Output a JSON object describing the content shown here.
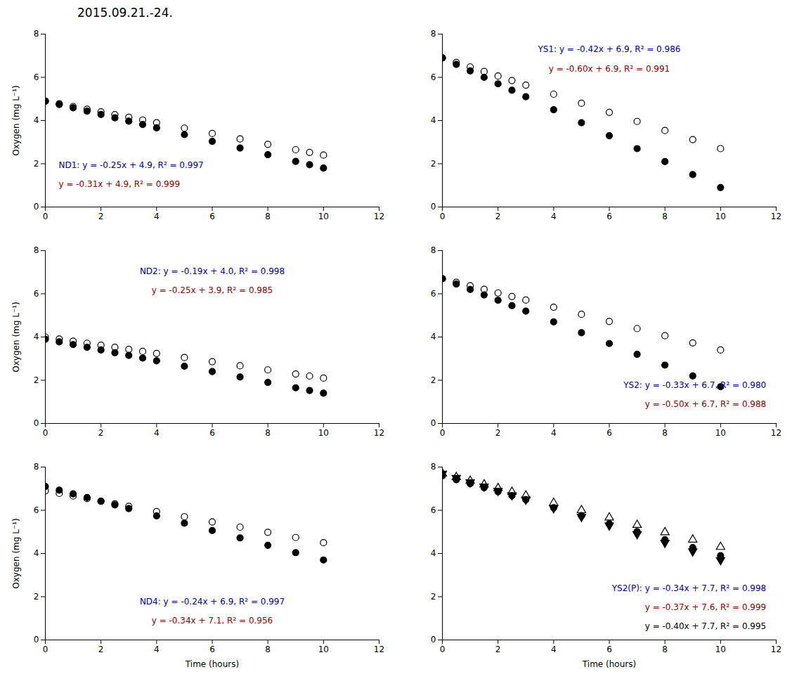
{
  "title": "2015.09.21.-24.",
  "chart_data": [
    {
      "type": "scatter",
      "x": [
        0,
        0.5,
        1,
        1.5,
        2,
        2.5,
        3,
        3.5,
        4,
        5,
        6,
        7,
        8,
        9,
        9.5,
        10
      ],
      "series": [
        {
          "marker": "open_circle",
          "color": "#000000",
          "values": [
            4.9,
            4.775,
            4.65,
            4.525,
            4.4,
            4.275,
            4.15,
            4.025,
            3.9,
            3.65,
            3.4,
            3.15,
            2.9,
            2.65,
            2.525,
            2.4
          ]
        },
        {
          "marker": "filled_circle",
          "color": "#000000",
          "values": [
            4.9,
            4.745,
            4.59,
            4.435,
            4.28,
            4.125,
            3.97,
            3.815,
            3.66,
            3.35,
            3.04,
            2.73,
            2.42,
            2.11,
            1.955,
            1.8
          ]
        }
      ],
      "annotations": [
        {
          "text": "ND1: y = -0.25x + 4.9, R² = 0.997",
          "color": "#000099"
        },
        {
          "text": "y = -0.31x + 4.9, R² = 0.999",
          "color": "#8B0000"
        }
      ],
      "ylabel": "Oxygen (mg L⁻¹)",
      "xlim": [
        0,
        12
      ],
      "ylim": [
        0,
        8
      ],
      "xticks": [
        0,
        2,
        4,
        6,
        8,
        10,
        12
      ],
      "yticks": [
        0,
        2,
        4,
        6,
        8
      ],
      "grid": false
    },
    {
      "type": "scatter",
      "x": [
        0,
        0.5,
        1,
        1.5,
        2,
        2.5,
        3,
        4,
        5,
        6,
        7,
        8,
        9,
        10
      ],
      "series": [
        {
          "marker": "open_circle",
          "color": "#000000",
          "values": [
            6.9,
            6.69,
            6.48,
            6.27,
            6.06,
            5.85,
            5.64,
            5.22,
            4.8,
            4.38,
            3.96,
            3.54,
            3.12,
            2.7
          ]
        },
        {
          "marker": "filled_circle",
          "color": "#000000",
          "values": [
            6.9,
            6.6,
            6.3,
            6.0,
            5.7,
            5.4,
            5.1,
            4.5,
            3.9,
            3.3,
            2.7,
            2.1,
            1.5,
            0.9
          ]
        }
      ],
      "annotations": [
        {
          "text": "YS1: y = -0.42x + 6.9, R² = 0.986",
          "color": "#000099"
        },
        {
          "text": "y = -0.60x + 6.9, R² = 0.991",
          "color": "#8B0000"
        }
      ],
      "xlim": [
        0,
        12
      ],
      "ylim": [
        0,
        8
      ],
      "xticks": [
        0,
        2,
        4,
        6,
        8,
        10,
        12
      ],
      "yticks": [
        0,
        2,
        4,
        6,
        8
      ],
      "grid": false
    },
    {
      "type": "scatter",
      "x": [
        0,
        0.5,
        1,
        1.5,
        2,
        2.5,
        3,
        3.5,
        4,
        5,
        6,
        7,
        8,
        9,
        9.5,
        10
      ],
      "series": [
        {
          "marker": "open_circle",
          "color": "#000000",
          "values": [
            4.0,
            3.905,
            3.81,
            3.715,
            3.62,
            3.525,
            3.43,
            3.335,
            3.24,
            3.05,
            2.86,
            2.67,
            2.48,
            2.29,
            2.195,
            2.1
          ]
        },
        {
          "marker": "filled_circle",
          "color": "#000000",
          "values": [
            3.9,
            3.775,
            3.65,
            3.525,
            3.4,
            3.275,
            3.15,
            3.025,
            2.9,
            2.65,
            2.4,
            2.15,
            1.9,
            1.65,
            1.525,
            1.4
          ]
        }
      ],
      "annotations": [
        {
          "text": "ND2: y = -0.19x + 4.0, R² = 0.998",
          "color": "#000099"
        },
        {
          "text": "y = -0.25x + 3.9, R² = 0.985",
          "color": "#8B0000"
        }
      ],
      "ylabel": "Oxygen (mg L⁻¹)",
      "xlim": [
        0,
        12
      ],
      "ylim": [
        0,
        8
      ],
      "xticks": [
        0,
        2,
        4,
        6,
        8,
        10,
        12
      ],
      "yticks": [
        0,
        2,
        4,
        6,
        8
      ],
      "grid": false
    },
    {
      "type": "scatter",
      "x": [
        0,
        0.5,
        1,
        1.5,
        2,
        2.5,
        3,
        4,
        5,
        6,
        7,
        8,
        9,
        10
      ],
      "series": [
        {
          "marker": "open_circle",
          "color": "#000000",
          "values": [
            6.7,
            6.535,
            6.37,
            6.205,
            6.04,
            5.875,
            5.71,
            5.38,
            5.05,
            4.72,
            4.39,
            4.06,
            3.73,
            3.4
          ]
        },
        {
          "marker": "filled_circle",
          "color": "#000000",
          "values": [
            6.7,
            6.45,
            6.2,
            5.95,
            5.7,
            5.45,
            5.2,
            4.7,
            4.2,
            3.7,
            3.2,
            2.7,
            2.2,
            1.7
          ]
        }
      ],
      "annotations": [
        {
          "text": "YS2: y = -0.33x + 6.7, R² = 0.980",
          "color": "#000099"
        },
        {
          "text": "y = -0.50x + 6.7, R² = 0.988",
          "color": "#8B0000"
        }
      ],
      "xlim": [
        0,
        12
      ],
      "ylim": [
        0,
        8
      ],
      "xticks": [
        0,
        2,
        4,
        6,
        8,
        10,
        12
      ],
      "yticks": [
        0,
        2,
        4,
        6,
        8
      ],
      "grid": false
    },
    {
      "type": "scatter",
      "x": [
        0,
        0.5,
        1,
        1.5,
        2,
        2.5,
        3,
        4,
        5,
        6,
        7,
        8,
        9,
        10
      ],
      "series": [
        {
          "marker": "open_circle",
          "color": "#000000",
          "values": [
            6.9,
            6.78,
            6.66,
            6.54,
            6.42,
            6.3,
            6.18,
            5.94,
            5.7,
            5.46,
            5.22,
            4.98,
            4.74,
            4.5
          ]
        },
        {
          "marker": "filled_circle",
          "color": "#000000",
          "values": [
            7.1,
            6.93,
            6.76,
            6.59,
            6.42,
            6.25,
            6.08,
            5.74,
            5.4,
            5.06,
            4.72,
            4.38,
            4.04,
            3.7
          ]
        }
      ],
      "annotations": [
        {
          "text": "ND4: y = -0.24x + 6.9, R² = 0.997",
          "color": "#000099"
        },
        {
          "text": "y = -0.34x + 7.1, R² = 0.956",
          "color": "#8B0000"
        }
      ],
      "xlabel": "Time (hours)",
      "ylabel": "Oxygen (mg L⁻¹)",
      "xlim": [
        0,
        12
      ],
      "ylim": [
        0,
        8
      ],
      "xticks": [
        0,
        2,
        4,
        6,
        8,
        10,
        12
      ],
      "yticks": [
        0,
        2,
        4,
        6,
        8
      ],
      "grid": false
    },
    {
      "type": "scatter",
      "x": [
        0,
        0.5,
        1,
        1.5,
        2,
        2.5,
        3,
        4,
        5,
        6,
        7,
        8,
        9,
        10
      ],
      "series": [
        {
          "marker": "open_triangle_up",
          "color": "#000000",
          "values": [
            7.7,
            7.53,
            7.36,
            7.19,
            7.02,
            6.85,
            6.68,
            6.34,
            6.0,
            5.66,
            5.32,
            4.98,
            4.64,
            4.3
          ]
        },
        {
          "marker": "filled_circle",
          "color": "#000000",
          "values": [
            7.6,
            7.415,
            7.23,
            7.045,
            6.86,
            6.675,
            6.49,
            6.12,
            5.75,
            5.38,
            5.01,
            4.64,
            4.27,
            3.9
          ]
        },
        {
          "marker": "filled_triangle_down",
          "color": "#000000",
          "values": [
            7.7,
            7.5,
            7.3,
            7.1,
            6.9,
            6.7,
            6.5,
            6.1,
            5.7,
            5.3,
            4.9,
            4.5,
            4.1,
            3.7
          ]
        }
      ],
      "annotations": [
        {
          "text": "YS2(P): y = -0.34x + 7.7, R² = 0.998",
          "color": "#000099"
        },
        {
          "text": "y = -0.37x + 7.6, R² = 0.999",
          "color": "#8B0000"
        },
        {
          "text": "y = -0.40x + 7.7, R² = 0.995",
          "color": "#000000"
        }
      ],
      "xlabel": "Time (hours)",
      "xlim": [
        0,
        12
      ],
      "ylim": [
        0,
        8
      ],
      "xticks": [
        0,
        2,
        4,
        6,
        8,
        10,
        12
      ],
      "yticks": [
        0,
        2,
        4,
        6,
        8
      ],
      "grid": false
    }
  ]
}
